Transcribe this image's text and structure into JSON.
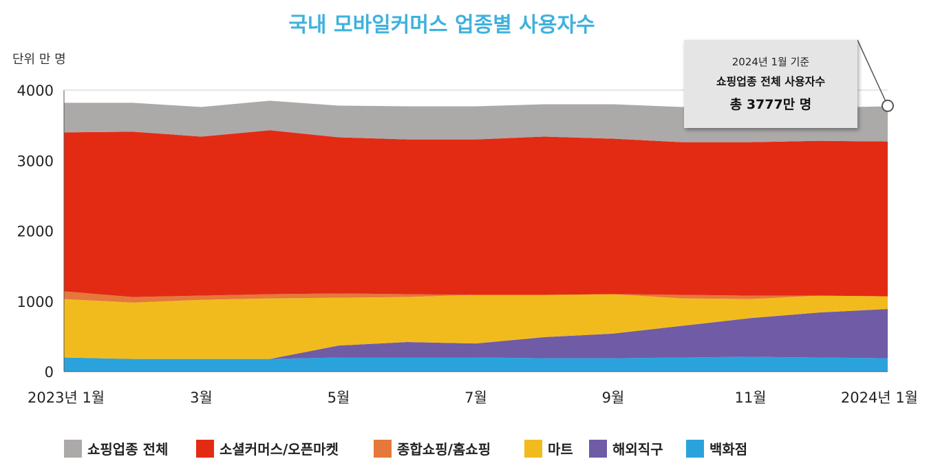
{
  "chart_data": {
    "type": "area",
    "stacked": true,
    "title": "국내 모바일커머스 업종별 사용자수",
    "unit_label": "단위 만 명",
    "ylim": [
      0,
      4000
    ],
    "yticks": [
      "0",
      "1000",
      "2000",
      "3000",
      "4000"
    ],
    "x": [
      "2023-01",
      "2023-02",
      "2023-03",
      "2023-04",
      "2023-05",
      "2023-06",
      "2023-07",
      "2023-08",
      "2023-09",
      "2023-10",
      "2023-11",
      "2023-12",
      "2024-01"
    ],
    "x_tick_labels": [
      {
        "index": 0,
        "label": "2023년 1월"
      },
      {
        "index": 2,
        "label": "3월"
      },
      {
        "index": 4,
        "label": "5월"
      },
      {
        "index": 6,
        "label": "7월"
      },
      {
        "index": 8,
        "label": "9월"
      },
      {
        "index": 10,
        "label": "11월"
      },
      {
        "index": 12,
        "label": "2024년 1월"
      }
    ],
    "series": [
      {
        "name": "백화점",
        "color": "#2aa3dc",
        "values": [
          200,
          180,
          180,
          180,
          200,
          200,
          200,
          190,
          190,
          200,
          210,
          200,
          190
        ]
      },
      {
        "name": "해외직구",
        "color": "#6f5ba6",
        "values": [
          0,
          0,
          0,
          0,
          170,
          220,
          200,
          300,
          350,
          450,
          550,
          640,
          700
        ]
      },
      {
        "name": "마트",
        "color": "#f2bb1d",
        "values": [
          830,
          800,
          840,
          860,
          680,
          640,
          690,
          600,
          560,
          390,
          270,
          240,
          180
        ]
      },
      {
        "name": "종합쇼핑/홈쇼핑",
        "color": "#e5783a",
        "values": [
          110,
          80,
          60,
          60,
          60,
          40,
          0,
          0,
          0,
          50,
          50,
          0,
          0
        ]
      },
      {
        "name": "소셜커머스/오픈마켓",
        "color": "#e32b14",
        "values": [
          2260,
          2350,
          2260,
          2330,
          2220,
          2200,
          2210,
          2250,
          2210,
          2170,
          2180,
          2200,
          2200
        ]
      },
      {
        "name": "쇼핑업종 전체",
        "color": "#aca9a9",
        "values": [
          420,
          410,
          420,
          420,
          450,
          470,
          470,
          460,
          490,
          500,
          520,
          470,
          500
        ]
      }
    ],
    "legend": [
      "쇼핑업종 전체",
      "소셜커머스/오픈마켓",
      "종합쇼핑/홈쇼핑",
      "마트",
      "해외직구",
      "백화점"
    ],
    "legend_position": "bottom",
    "annotation": {
      "line1": "2024년 1월 기준",
      "line2": "쇼핑업종 전체 사용자수",
      "line3": "총 3777만 명",
      "target_index": 12,
      "target_value": 3777
    },
    "grid": false
  }
}
